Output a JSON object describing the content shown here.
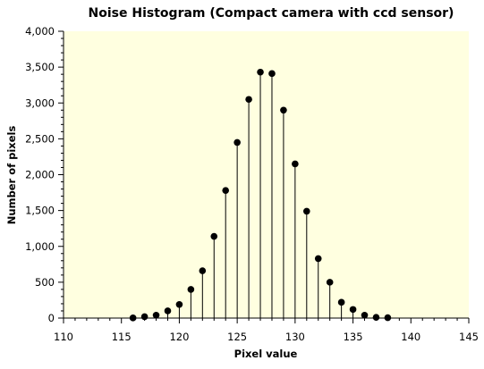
{
  "chart_data": {
    "type": "scatter",
    "style": "stem",
    "title": "Noise Histogram (Compact camera with ccd sensor)",
    "xlabel": "Pixel value",
    "ylabel": "Number of pixels",
    "xlim": [
      110,
      145
    ],
    "ylim": [
      0,
      4000
    ],
    "x_ticks": [
      "110",
      "115",
      "120",
      "125",
      "130",
      "135",
      "140",
      "145"
    ],
    "x_tick_values": [
      110,
      115,
      120,
      125,
      130,
      135,
      140,
      145
    ],
    "y_ticks": [
      "0",
      "500",
      "1,000",
      "1,500",
      "2,000",
      "2,500",
      "3,000",
      "3,500",
      "4,000"
    ],
    "y_tick_values": [
      0,
      500,
      1000,
      1500,
      2000,
      2500,
      3000,
      3500,
      4000
    ],
    "x": [
      116,
      117,
      118,
      119,
      120,
      121,
      122,
      123,
      124,
      125,
      126,
      127,
      128,
      129,
      130,
      131,
      132,
      133,
      134,
      135,
      136,
      137,
      138
    ],
    "y": [
      2,
      20,
      40,
      100,
      190,
      400,
      660,
      1140,
      1780,
      2450,
      3050,
      3430,
      3410,
      2900,
      2150,
      1490,
      830,
      500,
      220,
      120,
      40,
      10,
      5
    ],
    "grid": false,
    "legend": "none",
    "colors": {
      "plot_background": "#ffffe0",
      "marker": "#000000",
      "stem": "#000000"
    }
  }
}
